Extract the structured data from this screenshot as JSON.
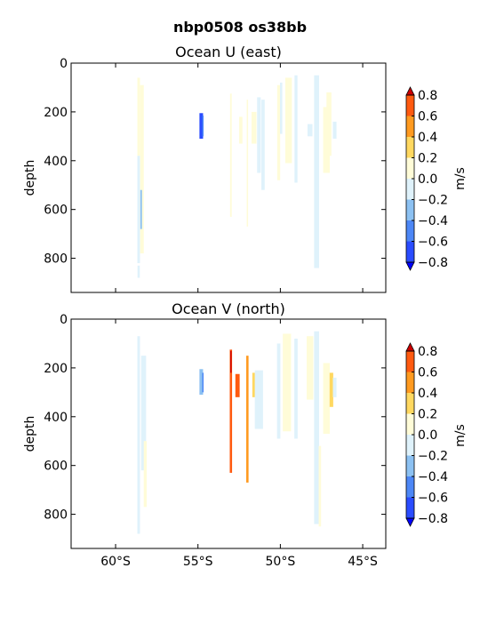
{
  "figure": {
    "suptitle": "nbp0508 os38bb"
  },
  "colorbar": {
    "label": "m/s",
    "levels": [
      -0.8,
      -0.6,
      -0.4,
      -0.2,
      0.0,
      0.2,
      0.4,
      0.6,
      0.8
    ],
    "tick_labels": [
      "−0.8",
      "−0.6",
      "−0.4",
      "−0.2",
      "0.0",
      "0.2",
      "0.4",
      "0.6",
      "0.8"
    ],
    "colors": {
      "under": "#0000ff",
      "bins": [
        "#2a4cff",
        "#4d87f6",
        "#8cc1f2",
        "#dff2fb",
        "#fffcd8",
        "#ffd860",
        "#ff9a20",
        "#ff5a10"
      ],
      "over": "#cc0000"
    }
  },
  "chart_data": [
    {
      "type": "heatmap",
      "title": "Ocean U (east)",
      "ylabel": "depth",
      "xlabel": "",
      "x_ticks": [
        -60,
        -55,
        -50,
        -45
      ],
      "x_tick_labels": [
        "60°S",
        "55°S",
        "50°S",
        "45°S"
      ],
      "y_ticks": [
        0,
        200,
        400,
        600,
        800
      ],
      "y_tick_labels": [
        "0",
        "200",
        "400",
        "600",
        "800"
      ],
      "xlim": [
        -62.7,
        -43.6
      ],
      "ylim": [
        940,
        0
      ],
      "show_x_tick_labels": false,
      "cells": [
        {
          "x": -58.6,
          "w": 0.16,
          "d0": 60,
          "d1": 380,
          "v": 0.1
        },
        {
          "x": -58.6,
          "w": 0.16,
          "d0": 380,
          "d1": 820,
          "v": -0.1
        },
        {
          "x": -58.4,
          "w": 0.22,
          "d0": 90,
          "d1": 780,
          "v": 0.1
        },
        {
          "x": -58.45,
          "w": 0.1,
          "d0": 520,
          "d1": 680,
          "v": -0.3
        },
        {
          "x": -58.6,
          "w": 0.14,
          "d0": 830,
          "d1": 880,
          "v": -0.1
        },
        {
          "x": -54.8,
          "w": 0.22,
          "d0": 205,
          "d1": 310,
          "v": -0.7
        },
        {
          "x": -54.7,
          "w": 0.08,
          "d0": 215,
          "d1": 300,
          "v": -0.5
        },
        {
          "x": -53.0,
          "w": 0.1,
          "d0": 125,
          "d1": 630,
          "v": 0.1
        },
        {
          "x": -52.4,
          "w": 0.2,
          "d0": 220,
          "d1": 330,
          "v": 0.1
        },
        {
          "x": -52.0,
          "w": 0.08,
          "d0": 150,
          "d1": 670,
          "v": 0.1
        },
        {
          "x": -51.6,
          "w": 0.3,
          "d0": 200,
          "d1": 330,
          "v": 0.1
        },
        {
          "x": -51.3,
          "w": 0.22,
          "d0": 140,
          "d1": 450,
          "v": -0.1
        },
        {
          "x": -51.05,
          "w": 0.2,
          "d0": 150,
          "d1": 520,
          "v": -0.1
        },
        {
          "x": -50.1,
          "w": 0.18,
          "d0": 90,
          "d1": 480,
          "v": 0.1
        },
        {
          "x": -49.95,
          "w": 0.14,
          "d0": 80,
          "d1": 290,
          "v": -0.1
        },
        {
          "x": -49.5,
          "w": 0.4,
          "d0": 60,
          "d1": 410,
          "v": 0.1
        },
        {
          "x": -49.05,
          "w": 0.18,
          "d0": 50,
          "d1": 490,
          "v": -0.1
        },
        {
          "x": -48.2,
          "w": 0.3,
          "d0": 250,
          "d1": 300,
          "v": -0.1
        },
        {
          "x": -47.8,
          "w": 0.3,
          "d0": 50,
          "d1": 840,
          "v": -0.1
        },
        {
          "x": -47.2,
          "w": 0.4,
          "d0": 180,
          "d1": 450,
          "v": 0.1
        },
        {
          "x": -47.05,
          "w": 0.3,
          "d0": 120,
          "d1": 380,
          "v": 0.1
        },
        {
          "x": -46.7,
          "w": 0.22,
          "d0": 240,
          "d1": 310,
          "v": -0.1
        }
      ]
    },
    {
      "type": "heatmap",
      "title": "Ocean V (north)",
      "ylabel": "depth",
      "xlabel": "",
      "x_ticks": [
        -60,
        -55,
        -50,
        -45
      ],
      "x_tick_labels": [
        "60°S",
        "55°S",
        "50°S",
        "45°S"
      ],
      "y_ticks": [
        0,
        200,
        400,
        600,
        800
      ],
      "y_tick_labels": [
        "0",
        "200",
        "400",
        "600",
        "800"
      ],
      "xlim": [
        -62.7,
        -43.6
      ],
      "ylim": [
        940,
        0
      ],
      "show_x_tick_labels": true,
      "cells": [
        {
          "x": -58.6,
          "w": 0.16,
          "d0": 70,
          "d1": 880,
          "v": -0.1
        },
        {
          "x": -58.3,
          "w": 0.3,
          "d0": 150,
          "d1": 620,
          "v": -0.1
        },
        {
          "x": -58.2,
          "w": 0.18,
          "d0": 500,
          "d1": 770,
          "v": 0.1
        },
        {
          "x": -54.8,
          "w": 0.22,
          "d0": 205,
          "d1": 310,
          "v": -0.3
        },
        {
          "x": -54.7,
          "w": 0.08,
          "d0": 220,
          "d1": 300,
          "v": -0.5
        },
        {
          "x": -53.0,
          "w": 0.14,
          "d0": 125,
          "d1": 630,
          "v": 0.7
        },
        {
          "x": -53.0,
          "w": 0.08,
          "d0": 130,
          "d1": 220,
          "v": 0.9
        },
        {
          "x": -52.6,
          "w": 0.26,
          "d0": 225,
          "d1": 320,
          "v": 0.7
        },
        {
          "x": -52.0,
          "w": 0.14,
          "d0": 150,
          "d1": 670,
          "v": 0.5
        },
        {
          "x": -51.6,
          "w": 0.2,
          "d0": 220,
          "d1": 320,
          "v": 0.3
        },
        {
          "x": -51.3,
          "w": 0.5,
          "d0": 210,
          "d1": 450,
          "v": -0.1
        },
        {
          "x": -50.1,
          "w": 0.2,
          "d0": 100,
          "d1": 490,
          "v": -0.1
        },
        {
          "x": -49.6,
          "w": 0.5,
          "d0": 60,
          "d1": 460,
          "v": 0.1
        },
        {
          "x": -49.05,
          "w": 0.2,
          "d0": 80,
          "d1": 490,
          "v": -0.1
        },
        {
          "x": -48.2,
          "w": 0.4,
          "d0": 70,
          "d1": 330,
          "v": 0.1
        },
        {
          "x": -47.8,
          "w": 0.3,
          "d0": 50,
          "d1": 840,
          "v": -0.1
        },
        {
          "x": -47.6,
          "w": 0.14,
          "d0": 520,
          "d1": 850,
          "v": 0.1
        },
        {
          "x": -47.2,
          "w": 0.4,
          "d0": 180,
          "d1": 470,
          "v": 0.1
        },
        {
          "x": -46.9,
          "w": 0.22,
          "d0": 220,
          "d1": 360,
          "v": 0.3
        },
        {
          "x": -46.7,
          "w": 0.22,
          "d0": 240,
          "d1": 320,
          "v": -0.1
        }
      ]
    }
  ]
}
